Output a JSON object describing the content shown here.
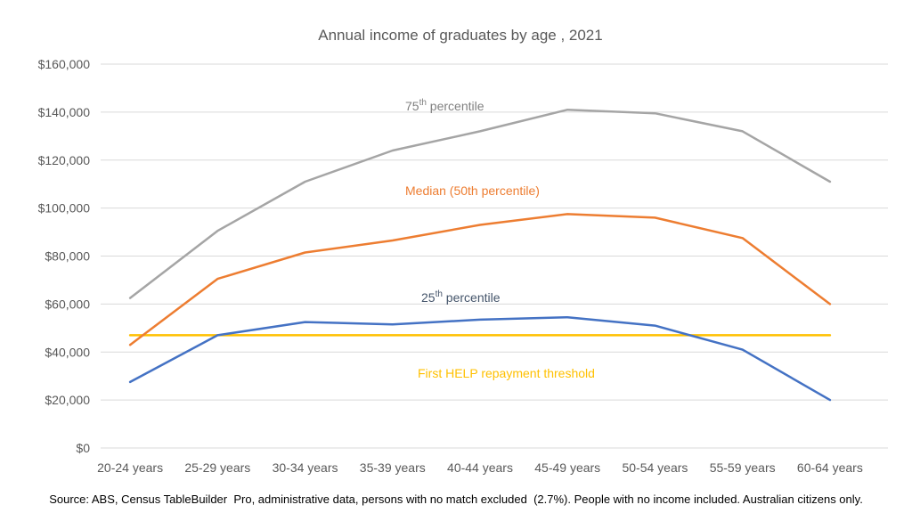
{
  "chart_data": {
    "type": "line",
    "title": "Annual income of graduates by age , 2021",
    "xlabel": "",
    "ylabel": "",
    "ylim": [
      0,
      160000
    ],
    "ytick_step": 20000,
    "yticks": [
      "$0",
      "$20,000",
      "$40,000",
      "$60,000",
      "$80,000",
      "$100,000",
      "$120,000",
      "$140,000",
      "$160,000"
    ],
    "grid": true,
    "legend": "none (inline line labels)",
    "categories": [
      "20-24 years",
      "25-29 years",
      "30-34 years",
      "35-39 years",
      "40-44 years",
      "45-49 years",
      "50-54 years",
      "55-59 years",
      "60-64 years"
    ],
    "series": [
      {
        "name": "75th percentile",
        "label_main": "75",
        "label_sup": "th",
        "label_rest": " percentile",
        "color": "#A5A5A5",
        "values": [
          62500,
          90500,
          111000,
          124000,
          132000,
          141000,
          139500,
          132000,
          111000
        ]
      },
      {
        "name": "Median (50th percentile)",
        "label_main": "Median (50th percentile)",
        "label_sup": "",
        "label_rest": "",
        "color": "#ED7D31",
        "values": [
          43000,
          70500,
          81500,
          86500,
          93000,
          97500,
          96000,
          87500,
          60000
        ]
      },
      {
        "name": "25th percentile",
        "label_main": "25",
        "label_sup": "th",
        "label_rest": " percentile",
        "color": "#4472C4",
        "values": [
          27500,
          47000,
          52500,
          51500,
          53500,
          54500,
          51000,
          41000,
          20000
        ]
      },
      {
        "name": "First HELP repayment threshold",
        "label_main": "First HELP repayment threshold",
        "label_sup": "",
        "label_rest": "",
        "color": "#FFC000",
        "values": [
          47000,
          47000,
          47000,
          47000,
          47000,
          47000,
          47000,
          47000,
          47000
        ]
      }
    ],
    "annotation_colors": {
      "75th percentile": "#808080",
      "Median (50th percentile)": "#ED7D31",
      "25th percentile": "#44546A",
      "First HELP repayment threshold": "#FFC000"
    },
    "source_note": "Source: ABS, Census TableBuilder  Pro, administrative data, persons with no match excluded  (2.7%). People with no income included. Australian citizens only."
  }
}
